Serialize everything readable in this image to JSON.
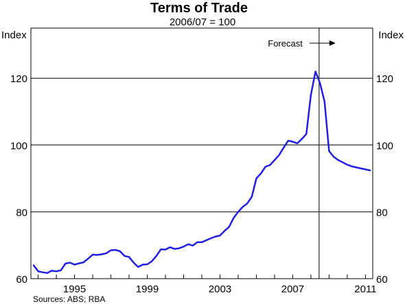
{
  "chart_data": {
    "type": "line",
    "title": "Terms of Trade",
    "subtitle": "2006/07 = 100",
    "ylabel_left": "Index",
    "ylabel_right": "Index",
    "ylim": [
      60,
      135
    ],
    "yticks": [
      60,
      80,
      100,
      120
    ],
    "xlim": [
      1992.6,
      2011.4
    ],
    "xticks": [
      1995,
      1999,
      2003,
      2007,
      2011
    ],
    "xtick_labels": [
      "1995",
      "1999",
      "2003",
      "2007",
      "2011"
    ],
    "grid": true,
    "forecast_start": 2008.45,
    "forecast_label": "Forecast",
    "source": "Sources: ABS; RBA",
    "line_color": "#1f1fe6",
    "series": [
      {
        "x": [
          1992.75,
          1993.0,
          1993.25,
          1993.5,
          1993.75,
          1994.0,
          1994.25,
          1994.5,
          1994.75,
          1995.0,
          1995.25,
          1995.5,
          1995.75,
          1996.0,
          1996.25,
          1996.5,
          1996.75,
          1997.0,
          1997.25,
          1997.5,
          1997.75,
          1998.0,
          1998.25,
          1998.5,
          1998.75,
          1999.0,
          1999.25,
          1999.5,
          1999.75,
          2000.0,
          2000.25,
          2000.5,
          2000.75,
          2001.0,
          2001.25,
          2001.5,
          2001.75,
          2002.0,
          2002.25,
          2002.5,
          2002.75,
          2003.0,
          2003.25,
          2003.5,
          2003.75,
          2004.0,
          2004.25,
          2004.5,
          2004.75,
          2005.0,
          2005.25,
          2005.5,
          2005.75,
          2006.0,
          2006.25,
          2006.5,
          2006.75,
          2007.0,
          2007.25,
          2007.5,
          2007.75,
          2008.0,
          2008.25,
          2008.5,
          2008.75,
          2009.0,
          2009.25,
          2009.5,
          2009.75,
          2010.0,
          2010.25,
          2010.5,
          2010.75,
          2011.0,
          2011.25
        ],
        "y": [
          64.0,
          62.2,
          61.9,
          61.7,
          62.4,
          62.2,
          62.5,
          64.5,
          64.8,
          64.2,
          64.6,
          64.9,
          66.0,
          67.2,
          67.1,
          67.3,
          67.6,
          68.5,
          68.6,
          68.2,
          66.8,
          66.5,
          64.8,
          63.5,
          64.2,
          64.3,
          65.2,
          66.8,
          68.8,
          68.7,
          69.4,
          68.9,
          69.1,
          69.6,
          70.3,
          69.9,
          70.9,
          70.9,
          71.5,
          72.1,
          72.6,
          72.9,
          74.3,
          75.5,
          78.2,
          80.0,
          81.5,
          82.5,
          84.5,
          90.0,
          91.5,
          93.5,
          94.0,
          95.5,
          97.0,
          99.2,
          101.3,
          101.0,
          100.5,
          101.8,
          103.3,
          115.0,
          122.0,
          118.5,
          113.0,
          98.2,
          96.5,
          95.5,
          94.8,
          94.1,
          93.6,
          93.3,
          93.0,
          92.7,
          92.4
        ]
      }
    ]
  }
}
